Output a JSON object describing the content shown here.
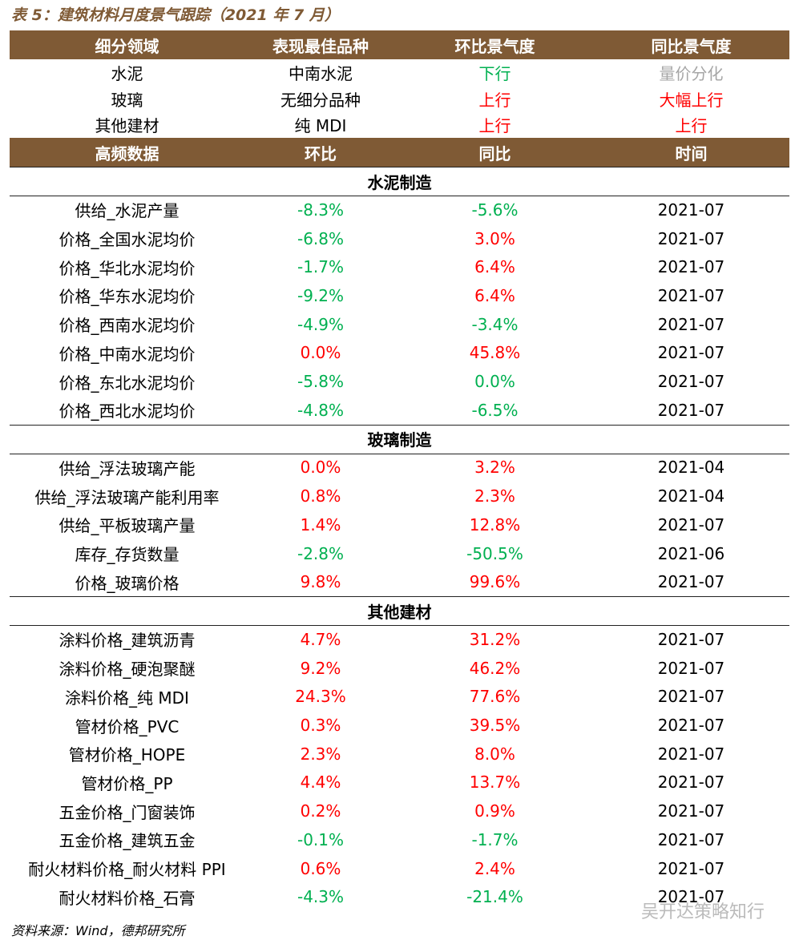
{
  "title": "表 5：建筑材料月度景气跟踪（2021 年 7 月）",
  "summary_header": [
    "细分领域",
    "表现最佳品种",
    "环比景气度",
    "同比景气度"
  ],
  "summary_rows": [
    {
      "cells": [
        "水泥",
        "中南水泥",
        "下行",
        "量价分化"
      ],
      "colors": [
        "#000000",
        "#000000",
        "#00b050",
        "#a6a6a6"
      ]
    },
    {
      "cells": [
        "玻璃",
        "无细分品种",
        "上行",
        "大幅上行"
      ],
      "colors": [
        "#000000",
        "#000000",
        "#ff0000",
        "#ff0000"
      ]
    },
    {
      "cells": [
        "其他建材",
        "纯 MDI",
        "上行",
        "上行"
      ],
      "colors": [
        "#000000",
        "#000000",
        "#ff0000",
        "#ff0000"
      ]
    }
  ],
  "data_header": [
    "高频数据",
    "环比",
    "同比",
    "时间"
  ],
  "sections": [
    {
      "title": "水泥制造",
      "rows": [
        {
          "cells": [
            "供给_水泥产量",
            "-8.3%",
            "-5.6%",
            "2021-07"
          ],
          "colors": [
            "#000000",
            "#00b050",
            "#00b050",
            "#000000"
          ]
        },
        {
          "cells": [
            "价格_全国水泥均价",
            "-6.8%",
            "3.0%",
            "2021-07"
          ],
          "colors": [
            "#000000",
            "#00b050",
            "#ff0000",
            "#000000"
          ]
        },
        {
          "cells": [
            "价格_华北水泥均价",
            "-1.7%",
            "6.4%",
            "2021-07"
          ],
          "colors": [
            "#000000",
            "#00b050",
            "#ff0000",
            "#000000"
          ]
        },
        {
          "cells": [
            "价格_华东水泥均价",
            "-9.2%",
            "6.4%",
            "2021-07"
          ],
          "colors": [
            "#000000",
            "#00b050",
            "#ff0000",
            "#000000"
          ]
        },
        {
          "cells": [
            "价格_西南水泥均价",
            "-4.9%",
            "-3.4%",
            "2021-07"
          ],
          "colors": [
            "#000000",
            "#00b050",
            "#00b050",
            "#000000"
          ]
        },
        {
          "cells": [
            "价格_中南水泥均价",
            "0.0%",
            "45.8%",
            "2021-07"
          ],
          "colors": [
            "#000000",
            "#ff0000",
            "#ff0000",
            "#000000"
          ]
        },
        {
          "cells": [
            "价格_东北水泥均价",
            "-5.8%",
            "0.0%",
            "2021-07"
          ],
          "colors": [
            "#000000",
            "#00b050",
            "#00b050",
            "#000000"
          ]
        },
        {
          "cells": [
            "价格_西北水泥均价",
            "-4.8%",
            "-6.5%",
            "2021-07"
          ],
          "colors": [
            "#000000",
            "#00b050",
            "#00b050",
            "#000000"
          ]
        }
      ]
    },
    {
      "title": "玻璃制造",
      "rows": [
        {
          "cells": [
            "供给_浮法玻璃产能",
            "0.0%",
            "3.2%",
            "2021-04"
          ],
          "colors": [
            "#000000",
            "#ff0000",
            "#ff0000",
            "#000000"
          ]
        },
        {
          "cells": [
            "供给_浮法玻璃产能利用率",
            "0.8%",
            "2.3%",
            "2021-04"
          ],
          "colors": [
            "#000000",
            "#ff0000",
            "#ff0000",
            "#000000"
          ]
        },
        {
          "cells": [
            "供给_平板玻璃产量",
            "1.4%",
            "12.8%",
            "2021-07"
          ],
          "colors": [
            "#000000",
            "#ff0000",
            "#ff0000",
            "#000000"
          ]
        },
        {
          "cells": [
            "库存_存货数量",
            "-2.8%",
            "-50.5%",
            "2021-06"
          ],
          "colors": [
            "#000000",
            "#00b050",
            "#00b050",
            "#000000"
          ]
        },
        {
          "cells": [
            "价格_玻璃价格",
            "9.8%",
            "99.6%",
            "2021-07"
          ],
          "colors": [
            "#000000",
            "#ff0000",
            "#ff0000",
            "#000000"
          ]
        }
      ]
    },
    {
      "title": "其他建材",
      "rows": [
        {
          "cells": [
            "涂料价格_建筑沥青",
            "4.7%",
            "31.2%",
            "2021-07"
          ],
          "colors": [
            "#000000",
            "#ff0000",
            "#ff0000",
            "#000000"
          ]
        },
        {
          "cells": [
            "涂料价格_硬泡聚醚",
            "9.2%",
            "46.2%",
            "2021-07"
          ],
          "colors": [
            "#000000",
            "#ff0000",
            "#ff0000",
            "#000000"
          ]
        },
        {
          "cells": [
            "涂料价格_纯 MDI",
            "24.3%",
            "77.6%",
            "2021-07"
          ],
          "colors": [
            "#000000",
            "#ff0000",
            "#ff0000",
            "#000000"
          ]
        },
        {
          "cells": [
            "管材价格_PVC",
            "0.3%",
            "39.5%",
            "2021-07"
          ],
          "colors": [
            "#000000",
            "#ff0000",
            "#ff0000",
            "#000000"
          ]
        },
        {
          "cells": [
            "管材价格_HOPE",
            "2.3%",
            "8.0%",
            "2021-07"
          ],
          "colors": [
            "#000000",
            "#ff0000",
            "#ff0000",
            "#000000"
          ]
        },
        {
          "cells": [
            "管材价格_PP",
            "4.4%",
            "13.7%",
            "2021-07"
          ],
          "colors": [
            "#000000",
            "#ff0000",
            "#ff0000",
            "#000000"
          ]
        },
        {
          "cells": [
            "五金价格_门窗装饰",
            "0.2%",
            "0.9%",
            "2021-07"
          ],
          "colors": [
            "#000000",
            "#ff0000",
            "#ff0000",
            "#000000"
          ]
        },
        {
          "cells": [
            "五金价格_建筑五金",
            "-0.1%",
            "-1.7%",
            "2021-07"
          ],
          "colors": [
            "#000000",
            "#00b050",
            "#00b050",
            "#000000"
          ]
        },
        {
          "cells": [
            "耐火材料价格_耐火材料 PPI",
            "0.6%",
            "2.4%",
            "2021-07"
          ],
          "colors": [
            "#000000",
            "#ff0000",
            "#ff0000",
            "#000000"
          ]
        },
        {
          "cells": [
            "耐火材料价格_石膏",
            "-4.3%",
            "-21.4%",
            "2021-07"
          ],
          "colors": [
            "#000000",
            "#00b050",
            "#00b050",
            "#000000"
          ]
        }
      ]
    }
  ],
  "source": "资料来源：Wind，德邦研究所",
  "watermark": "吴开达策略知行"
}
